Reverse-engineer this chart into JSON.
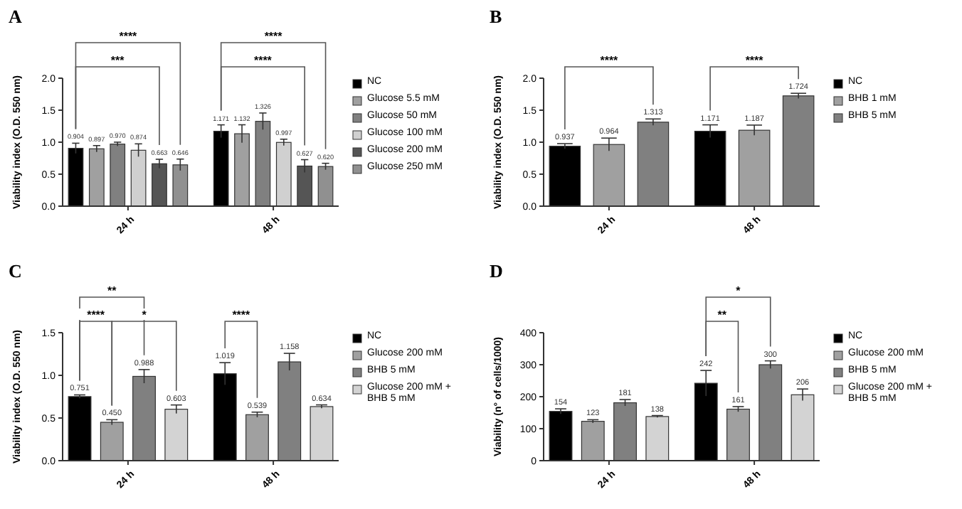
{
  "chart_data": [
    {
      "type": "bar",
      "title": "A",
      "ylabel": "Viability index (O.D. 550 nm)",
      "categories": [
        "24 h",
        "48 h"
      ],
      "ylim": [
        0,
        2
      ],
      "yticks": [
        {
          "value": 0,
          "label": "0.0"
        },
        {
          "value": 0.5,
          "label": "0.5"
        },
        {
          "value": 1,
          "label": "1.0"
        },
        {
          "value": 1.5,
          "label": "1.5"
        },
        {
          "value": 2,
          "label": "2.0"
        }
      ],
      "legend": "right",
      "annotations": [
        "****",
        "***",
        "****",
        "****"
      ],
      "series": [
        {
          "name": "NC",
          "color": "#000000",
          "values": [
            0.904,
            1.171
          ],
          "errors": [
            0.08,
            0.1
          ],
          "value_labels": [
            "0.904",
            "1.171"
          ]
        },
        {
          "name": "Glucose 5.5 mM",
          "color": "#a0a0a0",
          "values": [
            0.897,
            1.132
          ],
          "errors": [
            0.05,
            0.14
          ],
          "value_labels": [
            "0.897",
            "1.132"
          ]
        },
        {
          "name": "Glucose 50 mM",
          "color": "#808080",
          "values": [
            0.97,
            1.326
          ],
          "errors": [
            0.03,
            0.13
          ],
          "value_labels": [
            "0.970",
            "1.326"
          ]
        },
        {
          "name": "Glucose 100 mM",
          "color": "#d0d0d0",
          "values": [
            0.874,
            0.997
          ],
          "errors": [
            0.1,
            0.05
          ],
          "value_labels": [
            "0.874",
            "0.997"
          ]
        },
        {
          "name": "Glucose 200 mM",
          "color": "#555555",
          "values": [
            0.663,
            0.627
          ],
          "errors": [
            0.07,
            0.1
          ],
          "value_labels": [
            "0.663",
            "0.627"
          ]
        },
        {
          "name": "Glucose 250 mM",
          "color": "#909090",
          "values": [
            0.646,
            0.62
          ],
          "errors": [
            0.09,
            0.05
          ],
          "value_labels": [
            "0.646",
            "0.620"
          ]
        }
      ]
    },
    {
      "type": "bar",
      "title": "B",
      "ylabel": "Viability index (O.D. 550 nm)",
      "categories": [
        "24 h",
        "48 h"
      ],
      "ylim": [
        0,
        2
      ],
      "yticks": [
        {
          "value": 0,
          "label": "0.0"
        },
        {
          "value": 0.5,
          "label": "0.5"
        },
        {
          "value": 1,
          "label": "1.0"
        },
        {
          "value": 1.5,
          "label": "1.5"
        },
        {
          "value": 2,
          "label": "2.0"
        }
      ],
      "legend": "right",
      "annotations": [
        "****",
        "****"
      ],
      "series": [
        {
          "name": "NC",
          "color": "#000000",
          "values": [
            0.937,
            1.171
          ],
          "errors": [
            0.04,
            0.1
          ],
          "value_labels": [
            "0.937",
            "1.171"
          ]
        },
        {
          "name": "BHB 1 mM",
          "color": "#a0a0a0",
          "values": [
            0.964,
            1.187
          ],
          "errors": [
            0.1,
            0.08
          ],
          "value_labels": [
            "0.964",
            "1.187"
          ]
        },
        {
          "name": "BHB 5 mM",
          "color": "#808080",
          "values": [
            1.313,
            1.724
          ],
          "errors": [
            0.05,
            0.04
          ],
          "value_labels": [
            "1.313",
            "1.724"
          ]
        }
      ]
    },
    {
      "type": "bar",
      "title": "C",
      "ylabel": "Viability index (O.D. 550 nm)",
      "categories": [
        "24 h",
        "48 h"
      ],
      "ylim": [
        0,
        1.5
      ],
      "yticks": [
        {
          "value": 0,
          "label": "0.0"
        },
        {
          "value": 0.5,
          "label": "0.5"
        },
        {
          "value": 1,
          "label": "1.0"
        },
        {
          "value": 1.5,
          "label": "1.5"
        }
      ],
      "legend": "right",
      "annotations": [
        "**",
        "****",
        "*",
        "****"
      ],
      "series": [
        {
          "name": "NC",
          "color": "#000000",
          "values": [
            0.751,
            1.019
          ],
          "errors": [
            0.02,
            0.13
          ],
          "value_labels": [
            "0.751",
            "1.019"
          ]
        },
        {
          "name": "Glucose 200 mM",
          "color": "#a0a0a0",
          "values": [
            0.45,
            0.539
          ],
          "errors": [
            0.03,
            0.03
          ],
          "value_labels": [
            "0.450",
            "0.539"
          ]
        },
        {
          "name": "BHB 5 mM",
          "color": "#808080",
          "values": [
            0.988,
            1.158
          ],
          "errors": [
            0.08,
            0.1
          ],
          "value_labels": [
            "0.988",
            "1.158"
          ]
        },
        {
          "name": "Glucose 200 mM + BHB 5 mM",
          "color": "#d3d3d3",
          "values": [
            0.603,
            0.634
          ],
          "errors": [
            0.05,
            0.02
          ],
          "value_labels": [
            "0.603",
            "0.634"
          ]
        }
      ]
    },
    {
      "type": "bar",
      "title": "D",
      "ylabel": "Viability (n° of cells/1000)",
      "categories": [
        "24 h",
        "48 h"
      ],
      "ylim": [
        0,
        400
      ],
      "yticks": [
        0,
        100,
        200,
        300,
        400
      ],
      "legend": "right",
      "annotations": [
        "*",
        "**"
      ],
      "series": [
        {
          "name": "NC",
          "color": "#000000",
          "values": [
            154,
            242
          ],
          "errors": [
            8,
            40
          ],
          "value_labels": [
            "154",
            "242"
          ]
        },
        {
          "name": "Glucose 200 mM",
          "color": "#a0a0a0",
          "values": [
            123,
            161
          ],
          "errors": [
            5,
            8
          ],
          "value_labels": [
            "123",
            "161"
          ]
        },
        {
          "name": "BHB 5 mM",
          "color": "#808080",
          "values": [
            181,
            300
          ],
          "errors": [
            10,
            12
          ],
          "value_labels": [
            "181",
            "300"
          ]
        },
        {
          "name": "Glucose 200 mM + BHB 5 mM",
          "color": "#d3d3d3",
          "values": [
            138,
            206
          ],
          "errors": [
            3,
            18
          ],
          "value_labels": [
            "138",
            "206"
          ]
        }
      ]
    }
  ]
}
